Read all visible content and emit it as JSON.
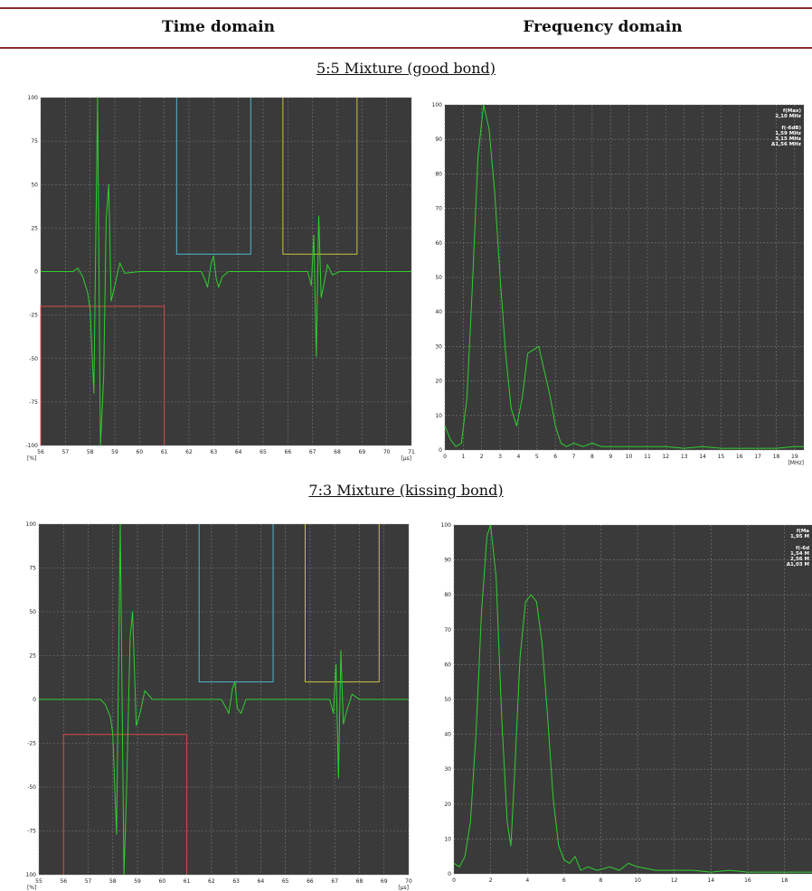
{
  "header": {
    "time_domain": "Time domain",
    "frequency_domain": "Frequency domain"
  },
  "captions": {
    "first": "5:5 Mixture (good bond)",
    "second": "7:3 Mixture (kissing bond)"
  },
  "colors": {
    "plot_bg": "#3a3a3a",
    "grid": "#7a7a7a",
    "trace": "#2ed02e",
    "gate_red": "#d94a4a",
    "gate_blue": "#4bb7d1",
    "gate_yellow": "#c8c33a"
  },
  "chart_data": [
    {
      "type": "line",
      "title": "5:5 Mixture (good bond) - Time domain",
      "xlabel": "[µs]",
      "ylabel": "[%]",
      "xlim": [
        56,
        71
      ],
      "ylim": [
        -100,
        100
      ],
      "x_ticks": [
        "56",
        "57",
        "58",
        "59",
        "60",
        "61",
        "62",
        "63",
        "64",
        "65",
        "66",
        "67",
        "68",
        "69",
        "70",
        "71"
      ],
      "y_ticks": [
        "100",
        "75",
        "50",
        "25",
        "0",
        "-25",
        "-50",
        "-75",
        "-100"
      ],
      "gates": [
        {
          "color": "red",
          "x": [
            56,
            61
          ],
          "level": -20
        },
        {
          "color": "blue",
          "x": [
            61.5,
            64.5
          ],
          "level": 10
        },
        {
          "color": "yellow",
          "x": [
            65.8,
            68.8
          ],
          "level": 10
        }
      ],
      "series": [
        {
          "values": [
            [
              56,
              0
            ],
            [
              57.3,
              0
            ],
            [
              57.5,
              2
            ],
            [
              57.7,
              -3
            ],
            [
              57.9,
              -12
            ],
            [
              58.0,
              -22
            ],
            [
              58.15,
              -70
            ],
            [
              58.3,
              100
            ],
            [
              58.42,
              -100
            ],
            [
              58.55,
              -60
            ],
            [
              58.65,
              30
            ],
            [
              58.75,
              50
            ],
            [
              58.85,
              -17
            ],
            [
              59.0,
              -8
            ],
            [
              59.2,
              5
            ],
            [
              59.4,
              -1
            ],
            [
              60,
              0
            ],
            [
              62.5,
              0
            ],
            [
              62.65,
              -5
            ],
            [
              62.75,
              -9
            ],
            [
              62.9,
              5
            ],
            [
              63.0,
              9
            ],
            [
              63.1,
              -4
            ],
            [
              63.2,
              -9
            ],
            [
              63.35,
              -3
            ],
            [
              63.6,
              0
            ],
            [
              66.8,
              0
            ],
            [
              66.95,
              -8
            ],
            [
              67.05,
              21
            ],
            [
              67.15,
              -49
            ],
            [
              67.25,
              32
            ],
            [
              67.35,
              -15
            ],
            [
              67.45,
              -8
            ],
            [
              67.6,
              4
            ],
            [
              67.8,
              -2
            ],
            [
              68.1,
              0
            ],
            [
              71,
              0
            ]
          ]
        }
      ]
    },
    {
      "type": "line",
      "title": "5:5 Mixture (good bond) - Frequency domain",
      "xlabel": "[MHz]",
      "ylabel": "",
      "xlim": [
        0,
        19.5
      ],
      "ylim": [
        0,
        100
      ],
      "x_ticks": [
        "0",
        "1",
        "2",
        "3",
        "4",
        "5",
        "6",
        "7",
        "8",
        "9",
        "10",
        "11",
        "12",
        "13",
        "14",
        "15",
        "16",
        "17",
        "18",
        "19"
      ],
      "y_ticks": [
        "100",
        "90",
        "80",
        "70",
        "60",
        "50",
        "40",
        "30",
        "20",
        "10",
        "0"
      ],
      "annotations": [
        "f(Max)",
        "2,10 MHz",
        "f(-6dB)",
        "1,59 MHz",
        "3,15 MHz",
        "Δ1,56 MHz"
      ],
      "series": [
        {
          "values": [
            [
              0,
              7
            ],
            [
              0.3,
              3
            ],
            [
              0.6,
              1
            ],
            [
              0.9,
              2
            ],
            [
              1.2,
              15
            ],
            [
              1.5,
              48
            ],
            [
              1.8,
              85
            ],
            [
              2.1,
              100
            ],
            [
              2.4,
              93
            ],
            [
              2.7,
              75
            ],
            [
              3.0,
              50
            ],
            [
              3.3,
              28
            ],
            [
              3.6,
              12
            ],
            [
              3.9,
              7
            ],
            [
              4.2,
              15
            ],
            [
              4.5,
              28
            ],
            [
              4.8,
              29
            ],
            [
              5.1,
              30
            ],
            [
              5.4,
              23
            ],
            [
              5.7,
              16
            ],
            [
              6.0,
              7
            ],
            [
              6.3,
              2
            ],
            [
              6.6,
              1
            ],
            [
              7.0,
              2
            ],
            [
              7.5,
              1
            ],
            [
              8,
              2
            ],
            [
              8.5,
              1
            ],
            [
              9,
              1
            ],
            [
              10,
              1
            ],
            [
              11,
              1
            ],
            [
              12,
              1
            ],
            [
              13,
              0.5
            ],
            [
              14,
              1
            ],
            [
              15,
              0.5
            ],
            [
              16,
              0.5
            ],
            [
              17,
              0.5
            ],
            [
              18,
              0.5
            ],
            [
              19,
              1
            ],
            [
              19.5,
              1
            ]
          ]
        }
      ]
    },
    {
      "type": "line",
      "title": "7:3 Mixture (kissing bond) - Time domain",
      "xlabel": "[µs]",
      "ylabel": "[%]",
      "xlim": [
        55,
        70
      ],
      "ylim": [
        -100,
        100
      ],
      "x_ticks": [
        "55",
        "56",
        "57",
        "58",
        "59",
        "60",
        "61",
        "62",
        "63",
        "64",
        "65",
        "66",
        "67",
        "68",
        "69",
        "70"
      ],
      "y_ticks": [
        "100",
        "75",
        "50",
        "25",
        "0",
        "-25",
        "-50",
        "-75",
        "-100"
      ],
      "gates": [
        {
          "color": "red",
          "x": [
            56,
            61
          ],
          "level": -20
        },
        {
          "color": "blue",
          "x": [
            61.5,
            64.5
          ],
          "level": 10
        },
        {
          "color": "yellow",
          "x": [
            65.8,
            68.8
          ],
          "level": 10
        }
      ],
      "series": [
        {
          "values": [
            [
              55,
              0
            ],
            [
              57.5,
              0
            ],
            [
              57.7,
              -3
            ],
            [
              57.9,
              -10
            ],
            [
              58.0,
              -20
            ],
            [
              58.15,
              -77
            ],
            [
              58.3,
              100
            ],
            [
              58.45,
              -100
            ],
            [
              58.55,
              -55
            ],
            [
              58.7,
              35
            ],
            [
              58.8,
              50
            ],
            [
              58.95,
              -15
            ],
            [
              59.1,
              -8
            ],
            [
              59.3,
              5
            ],
            [
              59.6,
              0
            ],
            [
              62.4,
              0
            ],
            [
              62.6,
              -5
            ],
            [
              62.7,
              -8
            ],
            [
              62.85,
              6
            ],
            [
              62.95,
              10
            ],
            [
              63.05,
              -5
            ],
            [
              63.2,
              -8
            ],
            [
              63.4,
              0
            ],
            [
              66.8,
              0
            ],
            [
              66.95,
              -8
            ],
            [
              67.05,
              20
            ],
            [
              67.15,
              -45
            ],
            [
              67.25,
              28
            ],
            [
              67.35,
              -14
            ],
            [
              67.5,
              -6
            ],
            [
              67.7,
              3
            ],
            [
              68.0,
              0
            ],
            [
              70,
              0
            ]
          ]
        }
      ]
    },
    {
      "type": "line",
      "title": "7:3 Mixture (kissing bond) - Frequency domain",
      "xlabel": "",
      "ylabel": "",
      "xlim": [
        0,
        19.5
      ],
      "ylim": [
        0,
        100
      ],
      "x_ticks": [
        "0",
        "2",
        "4",
        "6",
        "8",
        "10",
        "12",
        "14",
        "16",
        "18"
      ],
      "y_ticks": [
        "100",
        "90",
        "80",
        "70",
        "60",
        "50",
        "40",
        "30",
        "20",
        "10",
        "0"
      ],
      "annotations": [
        "f(Ma",
        "1,95 M",
        "f(-6d",
        "1,54 M",
        "2,56 M",
        "Δ1,03 M"
      ],
      "series": [
        {
          "values": [
            [
              0,
              3
            ],
            [
              0.3,
              2
            ],
            [
              0.6,
              5
            ],
            [
              0.9,
              15
            ],
            [
              1.2,
              40
            ],
            [
              1.5,
              75
            ],
            [
              1.8,
              97
            ],
            [
              2.0,
              100
            ],
            [
              2.3,
              85
            ],
            [
              2.6,
              45
            ],
            [
              2.9,
              15
            ],
            [
              3.1,
              8
            ],
            [
              3.3,
              28
            ],
            [
              3.6,
              62
            ],
            [
              3.9,
              78
            ],
            [
              4.2,
              80
            ],
            [
              4.5,
              78
            ],
            [
              4.8,
              66
            ],
            [
              5.1,
              45
            ],
            [
              5.4,
              22
            ],
            [
              5.7,
              8
            ],
            [
              6.0,
              4
            ],
            [
              6.3,
              3
            ],
            [
              6.6,
              5
            ],
            [
              6.9,
              1
            ],
            [
              7.3,
              2
            ],
            [
              7.8,
              1
            ],
            [
              8.5,
              2
            ],
            [
              9,
              1
            ],
            [
              9.5,
              3
            ],
            [
              10,
              2
            ],
            [
              11,
              1
            ],
            [
              12,
              1
            ],
            [
              13,
              1
            ],
            [
              14,
              0.5
            ],
            [
              15,
              1
            ],
            [
              16,
              0.5
            ],
            [
              17,
              0.5
            ],
            [
              18,
              0.5
            ],
            [
              19,
              0.5
            ],
            [
              19.5,
              0.5
            ]
          ]
        }
      ]
    }
  ]
}
